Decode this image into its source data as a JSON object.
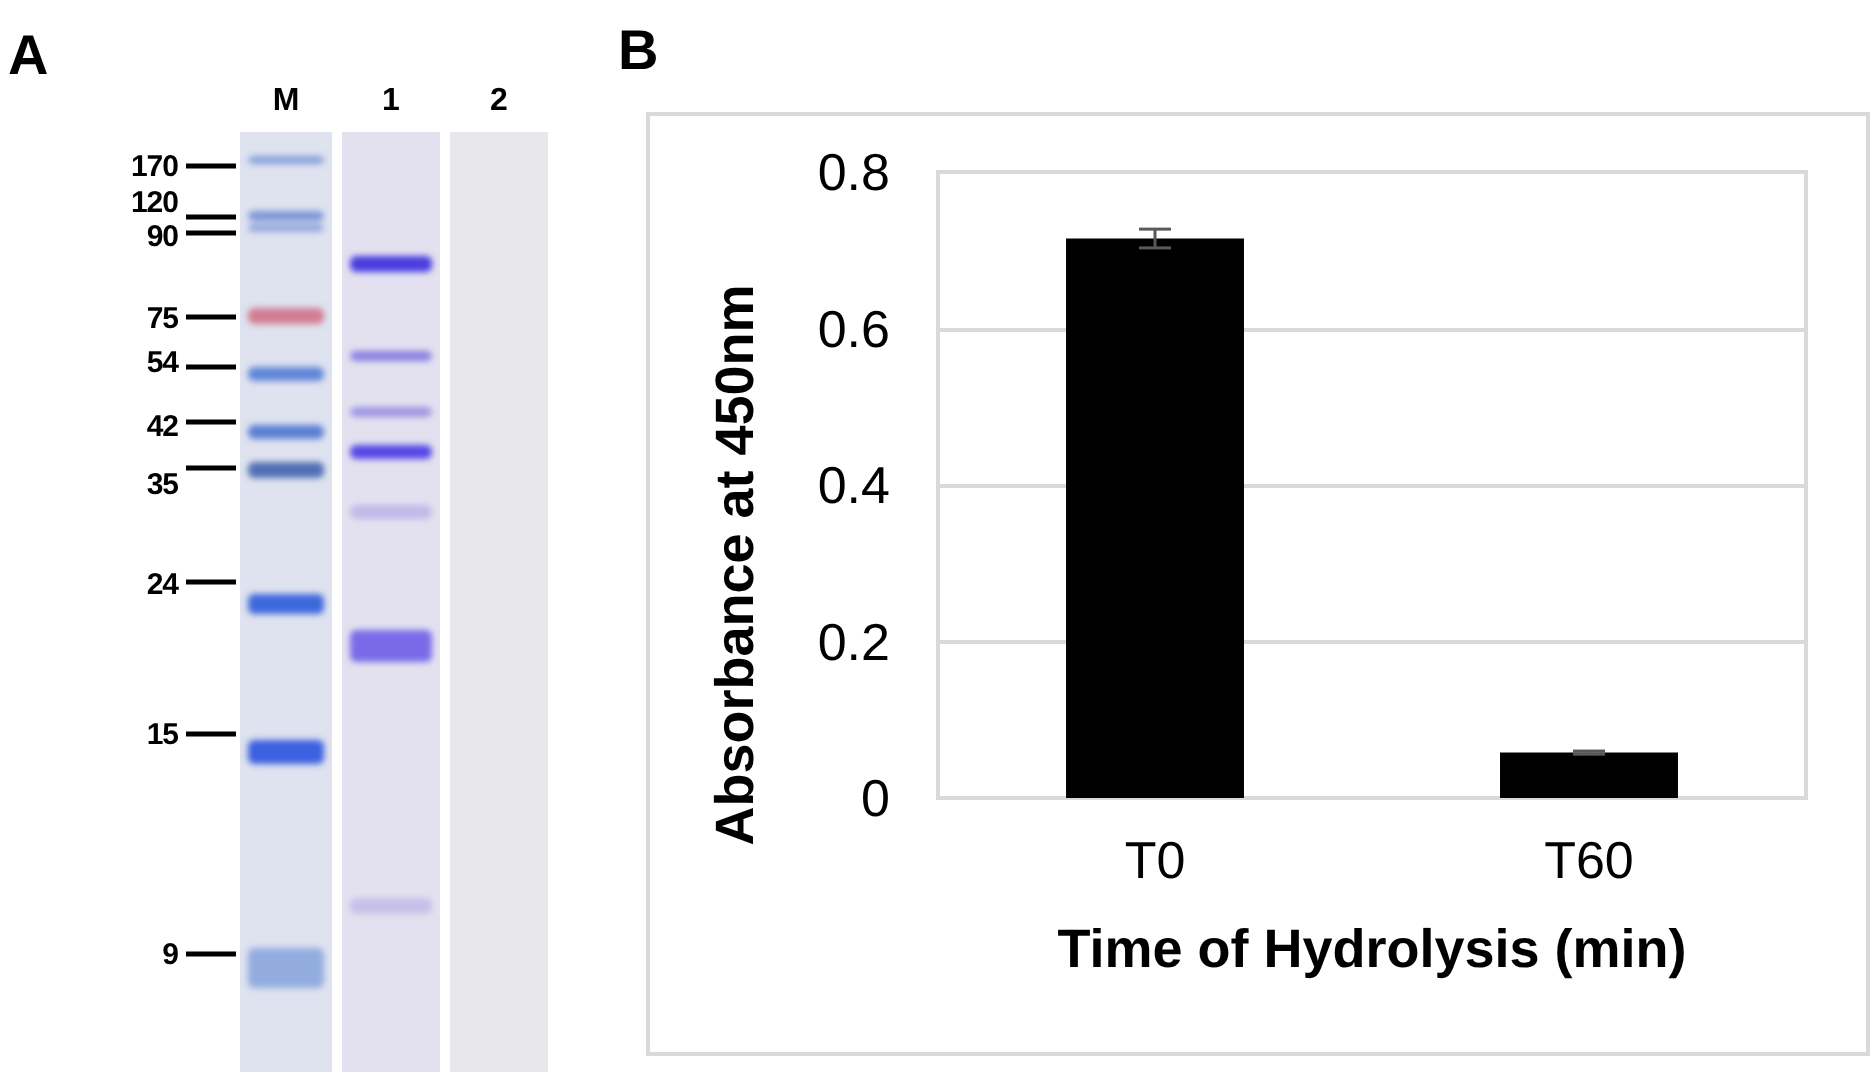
{
  "chart_data": [
    {
      "type": "other",
      "title": "A",
      "categories": [
        "M",
        "1",
        "2"
      ],
      "annotations": [
        "170",
        "120",
        "90",
        "75",
        "54",
        "42",
        "35",
        "24",
        "15",
        "9"
      ]
    },
    {
      "type": "bar",
      "title": "B",
      "xlabel": "Time of Hydrolysis (min)",
      "ylabel": "Absorbance at 450nm",
      "categories": [
        "T0",
        "T60"
      ],
      "values": [
        0.715,
        0.058
      ],
      "errors": [
        0.012,
        0.002
      ],
      "color": "#000000",
      "ylim": [
        0,
        0.8
      ],
      "yticks": [
        0,
        0.2,
        0.4,
        0.6,
        0.8
      ],
      "grid": "y"
    }
  ]
}
